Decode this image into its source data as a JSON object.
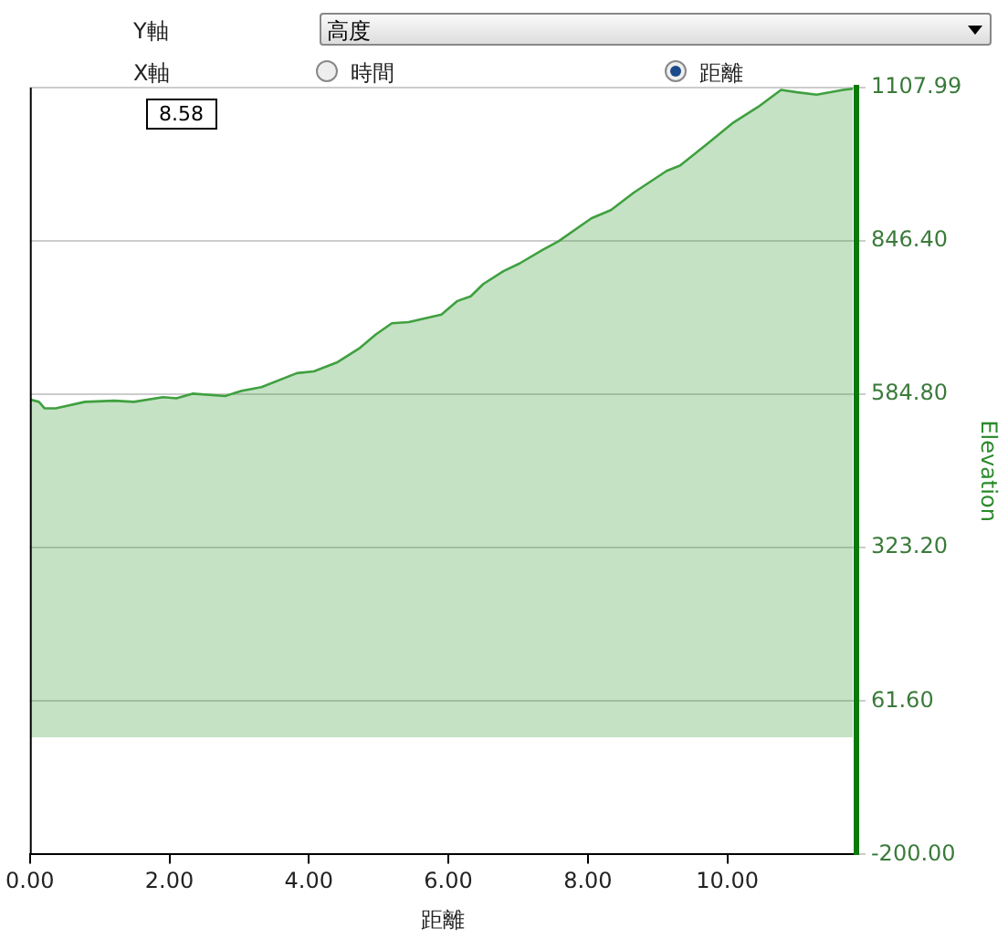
{
  "chart_data": {
    "type": "area",
    "xlabel": "距離",
    "ylabel": "Elevation",
    "annotations": [
      "Y軸",
      "高度",
      "X軸",
      "時間",
      "距離",
      "8.58"
    ],
    "xlim": [
      0,
      11.85
    ],
    "xticks": [
      {
        "value": 0,
        "label": "0.00"
      },
      {
        "value": 2,
        "label": "2.00"
      },
      {
        "value": 4,
        "label": "4.00"
      },
      {
        "value": 6,
        "label": "6.00"
      },
      {
        "value": 8,
        "label": "8.00"
      },
      {
        "value": 10,
        "label": "10.00"
      }
    ],
    "ylim": [
      -200,
      1107.99
    ],
    "yticks": [
      {
        "value": -200,
        "label": "-200.00"
      },
      {
        "value": 61.6,
        "label": "61.60"
      },
      {
        "value": 323.2,
        "label": "323.20"
      },
      {
        "value": 584.8,
        "label": "584.80"
      },
      {
        "value": 846.4,
        "label": "846.40"
      },
      1107.99
    ],
    "grid": "y",
    "legend": false,
    "series": [
      {
        "color": "#3fa03f",
        "x": [
          0,
          0.13,
          0.21,
          0.37,
          0.79,
          1.21,
          1.49,
          1.91,
          2.1,
          2.33,
          2.8,
          3.04,
          3.32,
          3.83,
          4.07,
          4.4,
          4.72,
          4.96,
          5.19,
          5.43,
          5.9,
          6.13,
          6.32,
          6.5,
          6.79,
          7.02,
          7.35,
          7.58,
          8.05,
          8.33,
          8.66,
          9.13,
          9.32,
          9.69,
          10.07,
          10.44,
          10.77,
          11,
          11.28,
          11.66,
          11.8
        ],
        "values": [
          576,
          572,
          561,
          561,
          572,
          574,
          572,
          580,
          578,
          586,
          582,
          591,
          597,
          621,
          624,
          639,
          663,
          687,
          706,
          708,
          721,
          744,
          752,
          773,
          795,
          808,
          831,
          846,
          885,
          899,
          929,
          966,
          975,
          1010,
          1047,
          1075,
          1104,
          1100,
          1096,
          1104,
          1106
        ]
      }
    ]
  }
}
